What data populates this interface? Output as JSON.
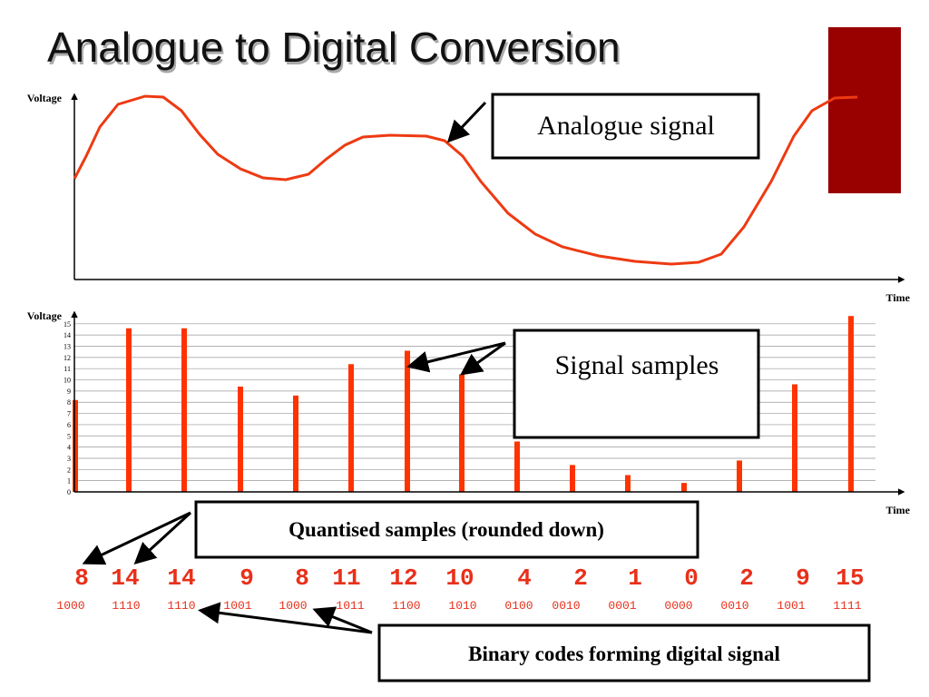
{
  "title": "Analogue to Digital Conversion",
  "top_panel": {
    "y_label": "Voltage",
    "x_label": "Time",
    "callout": "Analogue signal"
  },
  "samples": {
    "y_label": "Voltage",
    "x_label": "Time",
    "callout": "Signal samples",
    "ylim": [
      0,
      16.2
    ],
    "yticks": [
      0,
      1,
      2,
      3,
      4,
      5,
      6,
      7,
      8,
      9,
      10,
      11,
      12,
      13,
      14,
      15
    ],
    "values": [
      8.2,
      14.6,
      14.6,
      9.4,
      8.6,
      11.4,
      12.6,
      10.5,
      4.5,
      2.4,
      1.5,
      0.8,
      2.8,
      9.6,
      15.7
    ]
  },
  "quantised": {
    "callout": "Quantised samples (rounded down)",
    "values": [
      8,
      14,
      14,
      9,
      8,
      11,
      12,
      10,
      4,
      2,
      1,
      0,
      2,
      9,
      15
    ]
  },
  "binary": {
    "callout": "Binary codes forming digital signal",
    "codes": [
      "1000",
      "1110",
      "1110",
      "1001",
      "1000",
      "1011",
      "1100",
      "1010",
      "0100",
      "0010",
      "0001",
      "0000",
      "0010",
      "1001",
      "1111"
    ]
  }
}
